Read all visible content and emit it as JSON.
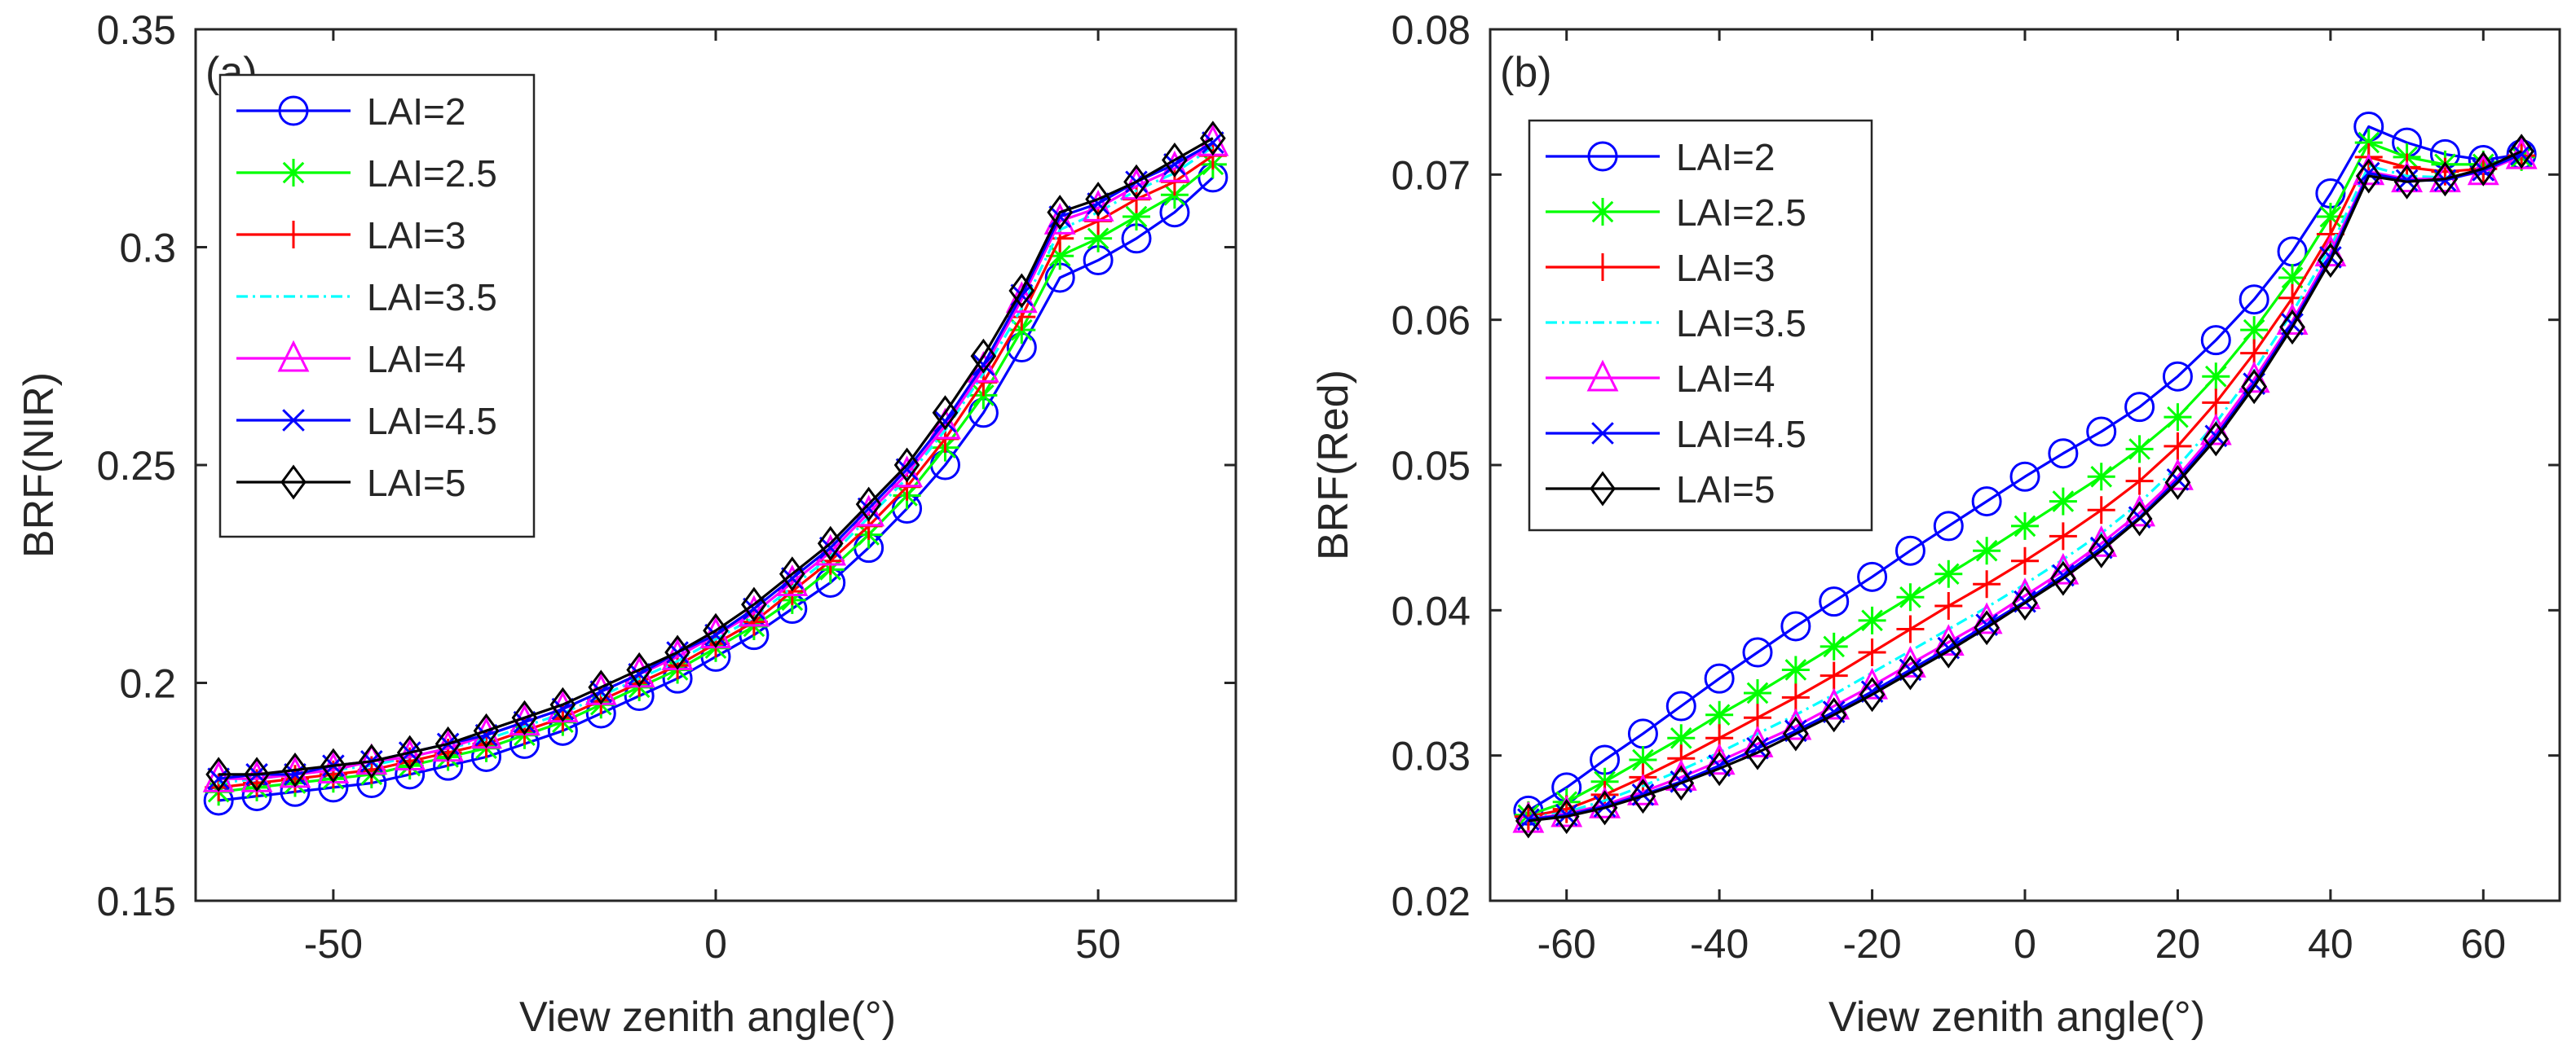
{
  "chart_data": [
    {
      "type": "line",
      "panel_label": "(a)",
      "xlabel": "View zenith angle(°)",
      "ylabel": "BRF(NIR)",
      "xlim": [
        -68,
        68
      ],
      "ylim": [
        0.15,
        0.35
      ],
      "xticks": [
        -50,
        0,
        50
      ],
      "xtick_labels": [
        "-50",
        "0",
        "50"
      ],
      "yticks": [
        0.15,
        0.2,
        0.25,
        0.3,
        0.35
      ],
      "ytick_labels": [
        "0.15",
        "0.2",
        "0.25",
        "0.3",
        "0.35"
      ],
      "grid": false,
      "legend_position": "top-left",
      "x": [
        -65,
        -60,
        -55,
        -50,
        -45,
        -40,
        -35,
        -30,
        -25,
        -20,
        -15,
        -10,
        -5,
        0,
        5,
        10,
        15,
        20,
        25,
        30,
        35,
        40,
        45,
        50,
        55,
        60,
        65
      ],
      "series": [
        {
          "name": "LAI=2",
          "color": "#0000ff",
          "marker": "circle",
          "dash": "solid",
          "values": [
            0.173,
            0.174,
            0.175,
            0.176,
            0.177,
            0.179,
            0.181,
            0.183,
            0.186,
            0.189,
            0.193,
            0.197,
            0.201,
            0.206,
            0.211,
            0.217,
            0.223,
            0.231,
            0.24,
            0.25,
            0.262,
            0.277,
            0.293,
            0.297,
            0.302,
            0.308,
            0.316
          ]
        },
        {
          "name": "LAI=2.5",
          "color": "#00ff00",
          "marker": "star",
          "dash": "solid",
          "values": [
            0.175,
            0.176,
            0.177,
            0.178,
            0.179,
            0.181,
            0.183,
            0.185,
            0.188,
            0.191,
            0.195,
            0.199,
            0.203,
            0.208,
            0.213,
            0.219,
            0.226,
            0.234,
            0.243,
            0.254,
            0.266,
            0.281,
            0.298,
            0.302,
            0.307,
            0.312,
            0.319
          ]
        },
        {
          "name": "LAI=3",
          "color": "#ff0000",
          "marker": "plus",
          "dash": "solid",
          "values": [
            0.176,
            0.177,
            0.178,
            0.179,
            0.18,
            0.182,
            0.184,
            0.186,
            0.189,
            0.192,
            0.196,
            0.2,
            0.204,
            0.209,
            0.214,
            0.221,
            0.228,
            0.236,
            0.245,
            0.256,
            0.269,
            0.284,
            0.302,
            0.306,
            0.311,
            0.315,
            0.321
          ]
        },
        {
          "name": "LAI=3.5",
          "color": "#00ffff",
          "marker": "none",
          "dash": "dashdot",
          "values": [
            0.177,
            0.178,
            0.179,
            0.18,
            0.181,
            0.183,
            0.185,
            0.187,
            0.19,
            0.193,
            0.197,
            0.201,
            0.205,
            0.21,
            0.215,
            0.222,
            0.229,
            0.238,
            0.247,
            0.258,
            0.271,
            0.286,
            0.304,
            0.308,
            0.313,
            0.317,
            0.323
          ]
        },
        {
          "name": "LAI=4",
          "color": "#ff00ff",
          "marker": "triangle",
          "dash": "solid",
          "values": [
            0.178,
            0.178,
            0.179,
            0.18,
            0.182,
            0.183,
            0.185,
            0.188,
            0.191,
            0.194,
            0.198,
            0.202,
            0.206,
            0.211,
            0.216,
            0.223,
            0.23,
            0.239,
            0.248,
            0.259,
            0.272,
            0.288,
            0.306,
            0.309,
            0.314,
            0.318,
            0.324
          ]
        },
        {
          "name": "LAI=4.5",
          "color": "#0000ff",
          "marker": "x",
          "dash": "solid",
          "values": [
            0.178,
            0.179,
            0.179,
            0.181,
            0.182,
            0.184,
            0.186,
            0.188,
            0.191,
            0.194,
            0.198,
            0.202,
            0.207,
            0.211,
            0.217,
            0.224,
            0.231,
            0.24,
            0.249,
            0.26,
            0.273,
            0.289,
            0.307,
            0.31,
            0.315,
            0.319,
            0.324
          ]
        },
        {
          "name": "LAI=5",
          "color": "#000000",
          "marker": "diamond",
          "dash": "solid",
          "values": [
            0.179,
            0.179,
            0.18,
            0.181,
            0.182,
            0.184,
            0.186,
            0.189,
            0.192,
            0.195,
            0.199,
            0.203,
            0.207,
            0.212,
            0.218,
            0.225,
            0.232,
            0.241,
            0.25,
            0.262,
            0.275,
            0.29,
            0.308,
            0.311,
            0.315,
            0.32,
            0.325
          ]
        }
      ]
    },
    {
      "type": "line",
      "panel_label": "(b)",
      "xlabel": "View zenith angle(°)",
      "ylabel": "BRF(Red)",
      "xlim": [
        -70,
        70
      ],
      "ylim": [
        0.02,
        0.08
      ],
      "xticks": [
        -60,
        -40,
        -20,
        0,
        20,
        40,
        60
      ],
      "xtick_labels": [
        "-60",
        "-40",
        "-20",
        "0",
        "20",
        "40",
        "60"
      ],
      "yticks": [
        0.02,
        0.03,
        0.04,
        0.05,
        0.06,
        0.07,
        0.08
      ],
      "ytick_labels": [
        "0.02",
        "0.03",
        "0.04",
        "0.05",
        "0.06",
        "0.07",
        "0.08"
      ],
      "grid": false,
      "legend_position": "top-left",
      "x": [
        -65,
        -60,
        -55,
        -50,
        -45,
        -40,
        -35,
        -30,
        -25,
        -20,
        -15,
        -10,
        -5,
        0,
        5,
        10,
        15,
        20,
        25,
        30,
        35,
        40,
        45,
        50,
        55,
        60,
        65
      ],
      "series": [
        {
          "name": "LAI=2",
          "color": "#0000ff",
          "marker": "circle",
          "dash": "solid",
          "values": [
            0.0262,
            0.0278,
            0.0297,
            0.0315,
            0.0334,
            0.0353,
            0.0371,
            0.0389,
            0.0406,
            0.0423,
            0.0441,
            0.0458,
            0.0475,
            0.0492,
            0.0508,
            0.0523,
            0.054,
            0.0561,
            0.0586,
            0.0614,
            0.0647,
            0.0687,
            0.0733,
            0.0722,
            0.0714,
            0.071,
            0.0714
          ]
        },
        {
          "name": "LAI=2.5",
          "color": "#00ff00",
          "marker": "star",
          "dash": "solid",
          "values": [
            0.0259,
            0.0268,
            0.0282,
            0.0297,
            0.0312,
            0.0328,
            0.0343,
            0.0359,
            0.0375,
            0.0393,
            0.0409,
            0.0425,
            0.0441,
            0.0458,
            0.0475,
            0.0492,
            0.0511,
            0.0533,
            0.0561,
            0.0593,
            0.0629,
            0.0671,
            0.0722,
            0.0712,
            0.0707,
            0.0707,
            0.0712
          ]
        },
        {
          "name": "LAI=3",
          "color": "#ff0000",
          "marker": "plus",
          "dash": "solid",
          "values": [
            0.0258,
            0.0263,
            0.0273,
            0.0285,
            0.0298,
            0.0312,
            0.0326,
            0.034,
            0.0355,
            0.0371,
            0.0387,
            0.0403,
            0.0418,
            0.0434,
            0.0451,
            0.0469,
            0.0489,
            0.0513,
            0.0543,
            0.0577,
            0.0615,
            0.0659,
            0.0712,
            0.0705,
            0.0702,
            0.0704,
            0.0713
          ]
        },
        {
          "name": "LAI=3.5",
          "color": "#00ffff",
          "marker": "none",
          "dash": "dashdot",
          "values": [
            0.0257,
            0.0261,
            0.0269,
            0.0279,
            0.029,
            0.0302,
            0.0315,
            0.0328,
            0.0342,
            0.0357,
            0.0372,
            0.0387,
            0.0402,
            0.0418,
            0.0435,
            0.0453,
            0.0474,
            0.0499,
            0.0529,
            0.0565,
            0.0605,
            0.065,
            0.0706,
            0.0699,
            0.0698,
            0.0702,
            0.0713
          ]
        },
        {
          "name": "LAI=4",
          "color": "#ff00ff",
          "marker": "triangle",
          "dash": "solid",
          "values": [
            0.0256,
            0.026,
            0.0266,
            0.0275,
            0.0285,
            0.0296,
            0.0308,
            0.032,
            0.0334,
            0.0348,
            0.0363,
            0.0378,
            0.0393,
            0.041,
            0.0427,
            0.0446,
            0.0467,
            0.0492,
            0.0523,
            0.0559,
            0.0599,
            0.0646,
            0.0702,
            0.0697,
            0.0697,
            0.0702,
            0.0713
          ]
        },
        {
          "name": "LAI=4.5",
          "color": "#0000ff",
          "marker": "x",
          "dash": "solid",
          "values": [
            0.0256,
            0.0259,
            0.0265,
            0.0273,
            0.0282,
            0.0293,
            0.0305,
            0.0317,
            0.033,
            0.0344,
            0.0359,
            0.0374,
            0.039,
            0.0406,
            0.0424,
            0.0443,
            0.0464,
            0.049,
            0.052,
            0.0556,
            0.0597,
            0.0643,
            0.0701,
            0.0696,
            0.0696,
            0.0703,
            0.0714
          ]
        },
        {
          "name": "LAI=5",
          "color": "#000000",
          "marker": "diamond",
          "dash": "solid",
          "values": [
            0.0255,
            0.0258,
            0.0264,
            0.0272,
            0.0281,
            0.0291,
            0.0302,
            0.0315,
            0.0328,
            0.0342,
            0.0357,
            0.0372,
            0.0388,
            0.0405,
            0.0422,
            0.0441,
            0.0463,
            0.0488,
            0.0518,
            0.0554,
            0.0595,
            0.0641,
            0.0699,
            0.0695,
            0.0697,
            0.0704,
            0.0716
          ]
        }
      ]
    }
  ]
}
